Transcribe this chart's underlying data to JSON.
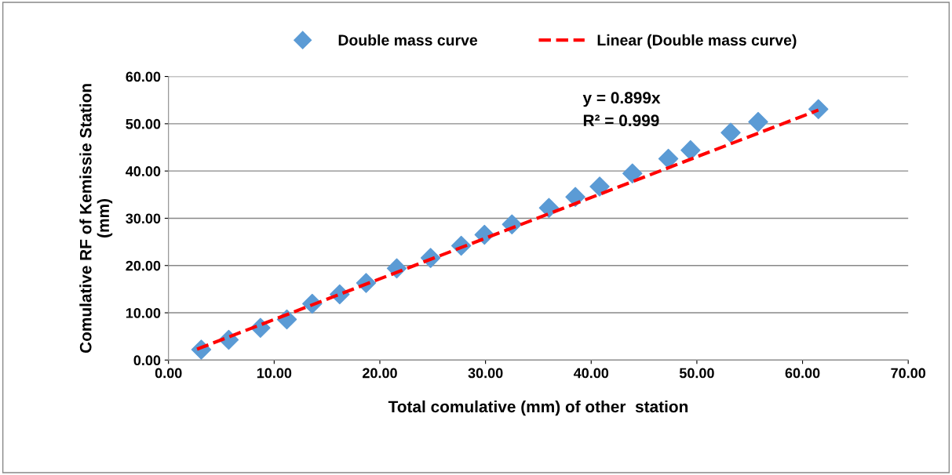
{
  "chart_data": {
    "type": "scatter",
    "xlabel": "Total comulative (mm) of other  station",
    "ylabel": "Comulative RF of Kemissie Station\n(mm)",
    "xlim": [
      0,
      70
    ],
    "ylim": [
      0,
      60
    ],
    "xticks": [
      {
        "value": 0,
        "label": "0.00"
      },
      {
        "value": 10,
        "label": "10.00"
      },
      {
        "value": 20,
        "label": "20.00"
      },
      {
        "value": 30,
        "label": "30.00"
      },
      {
        "value": 40,
        "label": "40.00"
      },
      {
        "value": 50,
        "label": "50.00"
      },
      {
        "value": 60,
        "label": "60.00"
      },
      {
        "value": 70,
        "label": "70.00"
      }
    ],
    "yticks": [
      {
        "value": 0,
        "label": "0.00"
      },
      {
        "value": 10,
        "label": "10.00"
      },
      {
        "value": 20,
        "label": "20.00"
      },
      {
        "value": 30,
        "label": "30.00"
      },
      {
        "value": 40,
        "label": "40.00"
      },
      {
        "value": 50,
        "label": "50.00"
      },
      {
        "value": 60,
        "label": "60.00"
      }
    ],
    "grid": "y",
    "legend": "top",
    "series": [
      {
        "name": "Double mass curve",
        "color": "#5b9bd5",
        "marker": "diamond",
        "x": [
          3.1,
          5.7,
          8.7,
          11.2,
          13.6,
          16.2,
          18.7,
          21.6,
          24.8,
          27.7,
          29.9,
          32.5,
          36.0,
          38.5,
          40.8,
          43.9,
          47.3,
          49.4,
          53.2,
          55.8,
          61.5
        ],
        "values": [
          2.2,
          4.3,
          6.8,
          8.6,
          11.9,
          13.9,
          16.3,
          19.4,
          21.6,
          24.2,
          26.5,
          28.7,
          32.2,
          34.5,
          36.7,
          39.5,
          42.6,
          44.4,
          48.1,
          50.4,
          53.1
        ]
      },
      {
        "name": "Linear (Double mass curve)",
        "type": "line",
        "color": "#ff0000",
        "line_style": "dashed",
        "x": [
          2.7,
          61.5
        ],
        "values": [
          2.3,
          52.9
        ]
      }
    ],
    "annotations": [
      "y = 0.899x",
      "R² = 0.999"
    ]
  }
}
